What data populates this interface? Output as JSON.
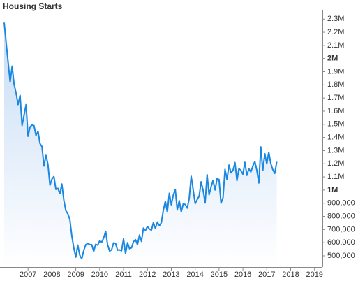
{
  "chart_data": {
    "type": "area",
    "title": "Housing Starts",
    "x": [
      2006,
      2006.083,
      2006.167,
      2006.25,
      2006.333,
      2006.417,
      2006.5,
      2006.583,
      2006.667,
      2006.75,
      2006.833,
      2006.917,
      2007,
      2007.083,
      2007.167,
      2007.25,
      2007.333,
      2007.417,
      2007.5,
      2007.583,
      2007.667,
      2007.75,
      2007.833,
      2007.917,
      2008,
      2008.083,
      2008.167,
      2008.25,
      2008.333,
      2008.417,
      2008.5,
      2008.583,
      2008.667,
      2008.75,
      2008.833,
      2008.917,
      2009,
      2009.083,
      2009.167,
      2009.25,
      2009.333,
      2009.417,
      2009.5,
      2009.583,
      2009.667,
      2009.75,
      2009.833,
      2009.917,
      2010,
      2010.083,
      2010.167,
      2010.25,
      2010.333,
      2010.417,
      2010.5,
      2010.583,
      2010.667,
      2010.75,
      2010.833,
      2010.917,
      2011,
      2011.083,
      2011.167,
      2011.25,
      2011.333,
      2011.417,
      2011.5,
      2011.583,
      2011.667,
      2011.75,
      2011.833,
      2011.917,
      2012,
      2012.083,
      2012.167,
      2012.25,
      2012.333,
      2012.417,
      2012.5,
      2012.583,
      2012.667,
      2012.75,
      2012.833,
      2012.917,
      2013,
      2013.083,
      2013.167,
      2013.25,
      2013.333,
      2013.417,
      2013.5,
      2013.583,
      2013.667,
      2013.75,
      2013.833,
      2013.917,
      2014,
      2014.083,
      2014.167,
      2014.25,
      2014.333,
      2014.417,
      2014.5,
      2014.583,
      2014.667,
      2014.75,
      2014.833,
      2014.917,
      2015,
      2015.083,
      2015.167,
      2015.25,
      2015.333,
      2015.417,
      2015.5,
      2015.583,
      2015.667,
      2015.75,
      2015.833,
      2015.917,
      2016,
      2016.083,
      2016.167,
      2016.25,
      2016.333,
      2016.417,
      2016.5,
      2016.583,
      2016.667,
      2016.75,
      2016.833,
      2016.917,
      2017,
      2017.083,
      2017.167,
      2017.25,
      2017.333,
      2017.417
    ],
    "series": [
      {
        "color": "#1a87e0",
        "values": [
          2273000,
          2119000,
          1969000,
          1821000,
          1942000,
          1802000,
          1737000,
          1650000,
          1720000,
          1491000,
          1570000,
          1649000,
          1409000,
          1480000,
          1495000,
          1490000,
          1415000,
          1448000,
          1354000,
          1330000,
          1183000,
          1264000,
          1197000,
          1037000,
          1084000,
          1103000,
          1005000,
          1013000,
          973000,
          1046000,
          923000,
          844000,
          820000,
          777000,
          652000,
          560000,
          490000,
          582000,
          505000,
          478000,
          540000,
          585000,
          594000,
          586000,
          585000,
          534000,
          588000,
          581000,
          614000,
          604000,
          636000,
          687000,
          583000,
          536000,
          546000,
          599000,
          594000,
          543000,
          545000,
          539000,
          630000,
          517000,
          600000,
          554000,
          561000,
          608000,
          623000,
          585000,
          658000,
          610000,
          711000,
          694000,
          723000,
          704000,
          695000,
          753000,
          708000,
          757000,
          728000,
          752000,
          847000,
          915000,
          833000,
          976000,
          888000,
          962000,
          1005000,
          849000,
          919000,
          835000,
          895000,
          891000,
          863000,
          936000,
          1105000,
          1003000,
          897000,
          928000,
          954000,
          1063000,
          998000,
          902000,
          1117000,
          964000,
          1025000,
          1074000,
          1001000,
          1087000,
          1080000,
          900000,
          944000,
          1158000,
          1080000,
          1190000,
          1131000,
          1149000,
          1209000,
          1072000,
          1163000,
          1149000,
          1120000,
          1211000,
          1112000,
          1162000,
          1138000,
          1183000,
          1217000,
          1150000,
          1054000,
          1328000,
          1149000,
          1276000,
          1200000,
          1288000,
          1203000,
          1156000,
          1127000,
          1215000
        ]
      }
    ],
    "xlim": [
      2005.825,
      2019.33
    ],
    "xticks": [
      2007,
      2008,
      2009,
      2010,
      2011,
      2012,
      2013,
      2014,
      2015,
      2016,
      2017,
      2018,
      2019
    ],
    "ylim": [
      415000,
      2365000
    ],
    "yticks": [
      {
        "value": 500000,
        "label": "500,000"
      },
      {
        "value": 600000,
        "label": "600,000"
      },
      {
        "value": 700000,
        "label": "700,000"
      },
      {
        "value": 800000,
        "label": "800,000"
      },
      {
        "value": 900000,
        "label": "900,000"
      },
      {
        "value": 1000000,
        "label": "1M"
      },
      {
        "value": 1100000,
        "label": "1.1M"
      },
      {
        "value": 1200000,
        "label": "1.2M"
      },
      {
        "value": 1300000,
        "label": "1.3M"
      },
      {
        "value": 1400000,
        "label": "1.4M"
      },
      {
        "value": 1500000,
        "label": "1.5M"
      },
      {
        "value": 1600000,
        "label": "1.6M"
      },
      {
        "value": 1700000,
        "label": "1.7M"
      },
      {
        "value": 1800000,
        "label": "1.8M"
      },
      {
        "value": 1900000,
        "label": "1.9M"
      },
      {
        "value": 2000000,
        "label": "2M"
      },
      {
        "value": 2100000,
        "label": "2.1M"
      },
      {
        "value": 2200000,
        "label": "2.2M"
      },
      {
        "value": 2300000,
        "label": "2.3M"
      }
    ]
  }
}
